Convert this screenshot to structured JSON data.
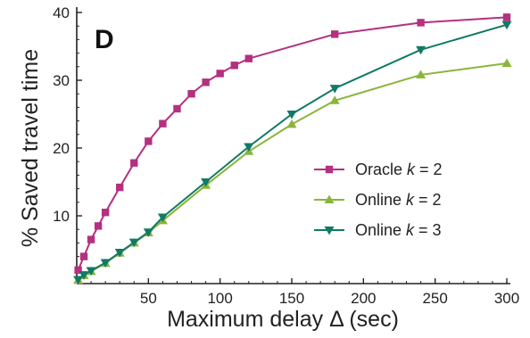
{
  "chart_data": {
    "type": "line",
    "panel_label": "D",
    "title": "",
    "xlabel": "Maximum delay Δ (sec)",
    "ylabel": "% Saved travel time",
    "xlim": [
      0,
      300
    ],
    "ylim": [
      0,
      40
    ],
    "xticks": [
      50,
      100,
      150,
      200,
      250,
      300
    ],
    "yticks": [
      10,
      20,
      30,
      40
    ],
    "legend_position": "right-middle",
    "series": [
      {
        "name": "Oracle k = 2",
        "name_plain": "Oracle ",
        "name_k": "k",
        "name_rest": " = 2",
        "color": "#b5307f",
        "marker": "square",
        "x": [
          1,
          5,
          10,
          15,
          20,
          30,
          40,
          50,
          60,
          70,
          80,
          90,
          100,
          110,
          120,
          180,
          240,
          300
        ],
        "y": [
          2,
          4,
          6.5,
          8.5,
          10.5,
          14.2,
          17.8,
          21,
          23.6,
          25.8,
          28,
          29.7,
          31,
          32.2,
          33.2,
          36.8,
          38.5,
          39.3
        ]
      },
      {
        "name": "Online k = 2",
        "name_plain": "Online ",
        "name_k": "k",
        "name_rest": " = 2",
        "color": "#8ab53a",
        "marker": "triangle-up",
        "x": [
          1,
          5,
          10,
          20,
          30,
          40,
          50,
          60,
          90,
          120,
          150,
          180,
          240,
          300
        ],
        "y": [
          0.5,
          1.2,
          1.8,
          3,
          4.5,
          6,
          7.5,
          9.3,
          14.5,
          19.5,
          23.5,
          27,
          30.8,
          32.5
        ]
      },
      {
        "name": "Online k = 3",
        "name_plain": "Online ",
        "name_k": "k",
        "name_rest": " = 3",
        "color": "#117a65",
        "marker": "triangle-down",
        "x": [
          1,
          5,
          10,
          20,
          30,
          40,
          50,
          60,
          90,
          120,
          150,
          180,
          240,
          300
        ],
        "y": [
          0.6,
          1.3,
          1.9,
          3.1,
          4.6,
          6.1,
          7.6,
          9.8,
          15,
          20.2,
          25,
          28.8,
          34.5,
          38.2
        ]
      }
    ]
  }
}
